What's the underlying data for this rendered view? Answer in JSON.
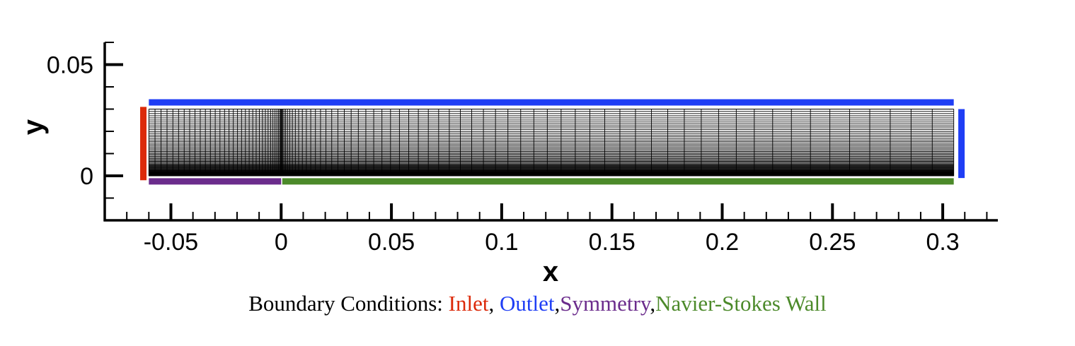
{
  "chart_data": {
    "type": "mesh",
    "xlabel": "x",
    "ylabel": "y",
    "xlim": [
      -0.08,
      0.325
    ],
    "ylim": [
      -0.02,
      0.06
    ],
    "x_ticks": [
      -0.05,
      0,
      0.05,
      0.1,
      0.15,
      0.2,
      0.25,
      0.3
    ],
    "x_tick_labels": [
      "-0.05",
      "0",
      "0.05",
      "0.1",
      "0.15",
      "0.2",
      "0.25",
      "0.3"
    ],
    "y_ticks": [
      0,
      0.05
    ],
    "y_tick_labels": [
      "0",
      "0.05"
    ],
    "domain": {
      "x": [
        -0.06,
        0.305
      ],
      "y": [
        0,
        0.03
      ]
    },
    "mesh": {
      "x_refinement_at": 0,
      "y_refinement_at": 0
    },
    "boundaries": [
      {
        "name": "Inlet",
        "color": "#dc2a0a",
        "x": [
          -0.0625,
          -0.0625
        ],
        "y": [
          -0.002,
          0.031
        ]
      },
      {
        "name": "Outlet",
        "color": "#1f3ef5",
        "x": [
          -0.06,
          0.305
        ],
        "y": [
          0.033,
          0.033
        ]
      },
      {
        "name": "Outlet",
        "color": "#1f3ef5",
        "x": [
          0.3085,
          0.3085
        ],
        "y": [
          -0.001,
          0.03
        ]
      },
      {
        "name": "Symmetry",
        "color": "#6b2c8c",
        "x": [
          -0.06,
          0
        ],
        "y": [
          -0.0025,
          -0.0025
        ]
      },
      {
        "name": "Navier-Stokes Wall",
        "color": "#4c8a2a",
        "x": [
          0.0005,
          0.305
        ],
        "y": [
          -0.0025,
          -0.0025
        ]
      }
    ]
  },
  "caption": {
    "prefix": "Boundary Conditions:",
    "inlet": "Inlet",
    "outlet": "Outlet",
    "symmetry": "Symmetry",
    "wall": "Navier-Stokes Wall",
    "inlet_color": "#dc2a0a",
    "outlet_color": "#1f3ef5",
    "symmetry_color": "#6b2c8c",
    "wall_color": "#4c8a2a"
  }
}
